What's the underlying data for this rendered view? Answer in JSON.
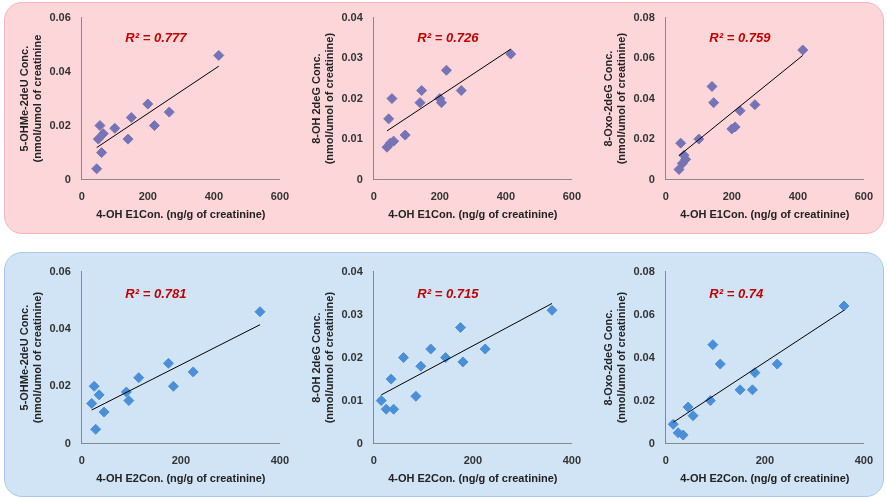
{
  "chart_data": [
    {
      "type": "scatter",
      "x_label": "4-OH E1Con. (ng/g of creatinine)",
      "y_label": [
        "5-OHMe-2deU Conc.",
        "(nmol/umol of creatinine"
      ],
      "annotation": "R² = 0.777",
      "x": [
        45,
        50,
        55,
        60,
        65,
        100,
        140,
        150,
        200,
        220,
        265,
        415
      ],
      "values": [
        0.004,
        0.015,
        0.02,
        0.01,
        0.017,
        0.019,
        0.015,
        0.023,
        0.028,
        0.02,
        0.025,
        0.046
      ],
      "color": "#7674b6",
      "marker": "diamond",
      "grid": false,
      "xlim": [
        0,
        600
      ],
      "xticks": [
        0,
        200,
        400,
        600
      ],
      "ylim": [
        0,
        0.06
      ],
      "yticks": [
        0,
        0.02,
        0.04,
        0.06
      ]
    },
    {
      "type": "scatter",
      "x_label": "4-OH E1Con. (ng/g of creatinine)",
      "y_label": [
        "8-OH 2deG Conc.",
        "(nmol/umol of creatinine)"
      ],
      "annotation": "R² = 0.726",
      "x": [
        40,
        45,
        50,
        55,
        60,
        95,
        140,
        145,
        200,
        205,
        220,
        265,
        415
      ],
      "values": [
        0.008,
        0.015,
        0.009,
        0.02,
        0.0095,
        0.011,
        0.019,
        0.022,
        0.02,
        0.019,
        0.027,
        0.022,
        0.031
      ],
      "color": "#7674b6",
      "marker": "diamond",
      "grid": false,
      "xlim": [
        0,
        600
      ],
      "xticks": [
        0,
        200,
        400,
        600
      ],
      "ylim": [
        0,
        0.04
      ],
      "yticks": [
        0,
        0.01,
        0.02,
        0.03,
        0.04
      ]
    },
    {
      "type": "scatter",
      "x_label": "4-OH E1Con. (ng/g of creatinine)",
      "y_label": [
        "8-Oxo-2deG Conc.",
        "(nmol/umol of creatinine)"
      ],
      "annotation": "R² = 0.759",
      "x": [
        40,
        45,
        50,
        55,
        60,
        100,
        140,
        145,
        200,
        210,
        225,
        270,
        415
      ],
      "values": [
        0.005,
        0.018,
        0.008,
        0.012,
        0.01,
        0.02,
        0.046,
        0.038,
        0.025,
        0.026,
        0.034,
        0.037,
        0.064
      ],
      "color": "#7674b6",
      "marker": "diamond",
      "grid": false,
      "xlim": [
        0,
        600
      ],
      "xticks": [
        0,
        200,
        400,
        600
      ],
      "ylim": [
        0,
        0.08
      ],
      "yticks": [
        0,
        0.02,
        0.04,
        0.06,
        0.08
      ]
    },
    {
      "type": "scatter",
      "x_label": "4-OH E2Con. (ng/g of creatinine)",
      "y_label": [
        "5-OHMe-2deU Conc.",
        "(nmol/umol of creatinine)"
      ],
      "annotation": "R² = 0.781",
      "x": [
        20,
        25,
        28,
        35,
        45,
        90,
        95,
        115,
        175,
        185,
        225,
        360
      ],
      "values": [
        0.014,
        0.02,
        0.005,
        0.017,
        0.011,
        0.018,
        0.015,
        0.023,
        0.028,
        0.02,
        0.025,
        0.046
      ],
      "color": "#4a8fd8",
      "marker": "diamond",
      "grid": false,
      "xlim": [
        0,
        400
      ],
      "xticks": [
        0,
        200,
        400
      ],
      "ylim": [
        0,
        0.06
      ],
      "yticks": [
        0,
        0.02,
        0.04,
        0.06
      ]
    },
    {
      "type": "scatter",
      "x_label": "4-OH E2Con. (ng/g of creatinine)",
      "y_label": [
        "8-OH 2deG Conc.",
        "(nmol/umol of creatinine)"
      ],
      "annotation": "R² = 0.715",
      "x": [
        15,
        25,
        35,
        40,
        60,
        85,
        95,
        115,
        145,
        175,
        180,
        225,
        360
      ],
      "values": [
        0.01,
        0.008,
        0.015,
        0.008,
        0.02,
        0.011,
        0.018,
        0.022,
        0.02,
        0.027,
        0.019,
        0.022,
        0.031
      ],
      "color": "#4a8fd8",
      "marker": "diamond",
      "grid": false,
      "xlim": [
        0,
        400
      ],
      "xticks": [
        0,
        200,
        400
      ],
      "ylim": [
        0,
        0.04
      ],
      "yticks": [
        0,
        0.01,
        0.02,
        0.03,
        0.04
      ]
    },
    {
      "type": "scatter",
      "x_label": "4-OH E2Con. (ng/g of creatinine)",
      "y_label": [
        "8-Oxo-2deG Conc.",
        "(nmol/umol of creatinine)"
      ],
      "annotation": "R² = 0.74",
      "x": [
        15,
        25,
        35,
        45,
        55,
        90,
        95,
        110,
        150,
        175,
        180,
        225,
        360
      ],
      "values": [
        0.009,
        0.005,
        0.004,
        0.017,
        0.013,
        0.02,
        0.046,
        0.037,
        0.025,
        0.025,
        0.033,
        0.037,
        0.064
      ],
      "color": "#4a8fd8",
      "marker": "diamond",
      "grid": false,
      "xlim": [
        0,
        400
      ],
      "xticks": [
        0,
        200,
        400
      ],
      "ylim": [
        0,
        0.08
      ],
      "yticks": [
        0,
        0.02,
        0.04,
        0.06,
        0.08
      ]
    }
  ]
}
